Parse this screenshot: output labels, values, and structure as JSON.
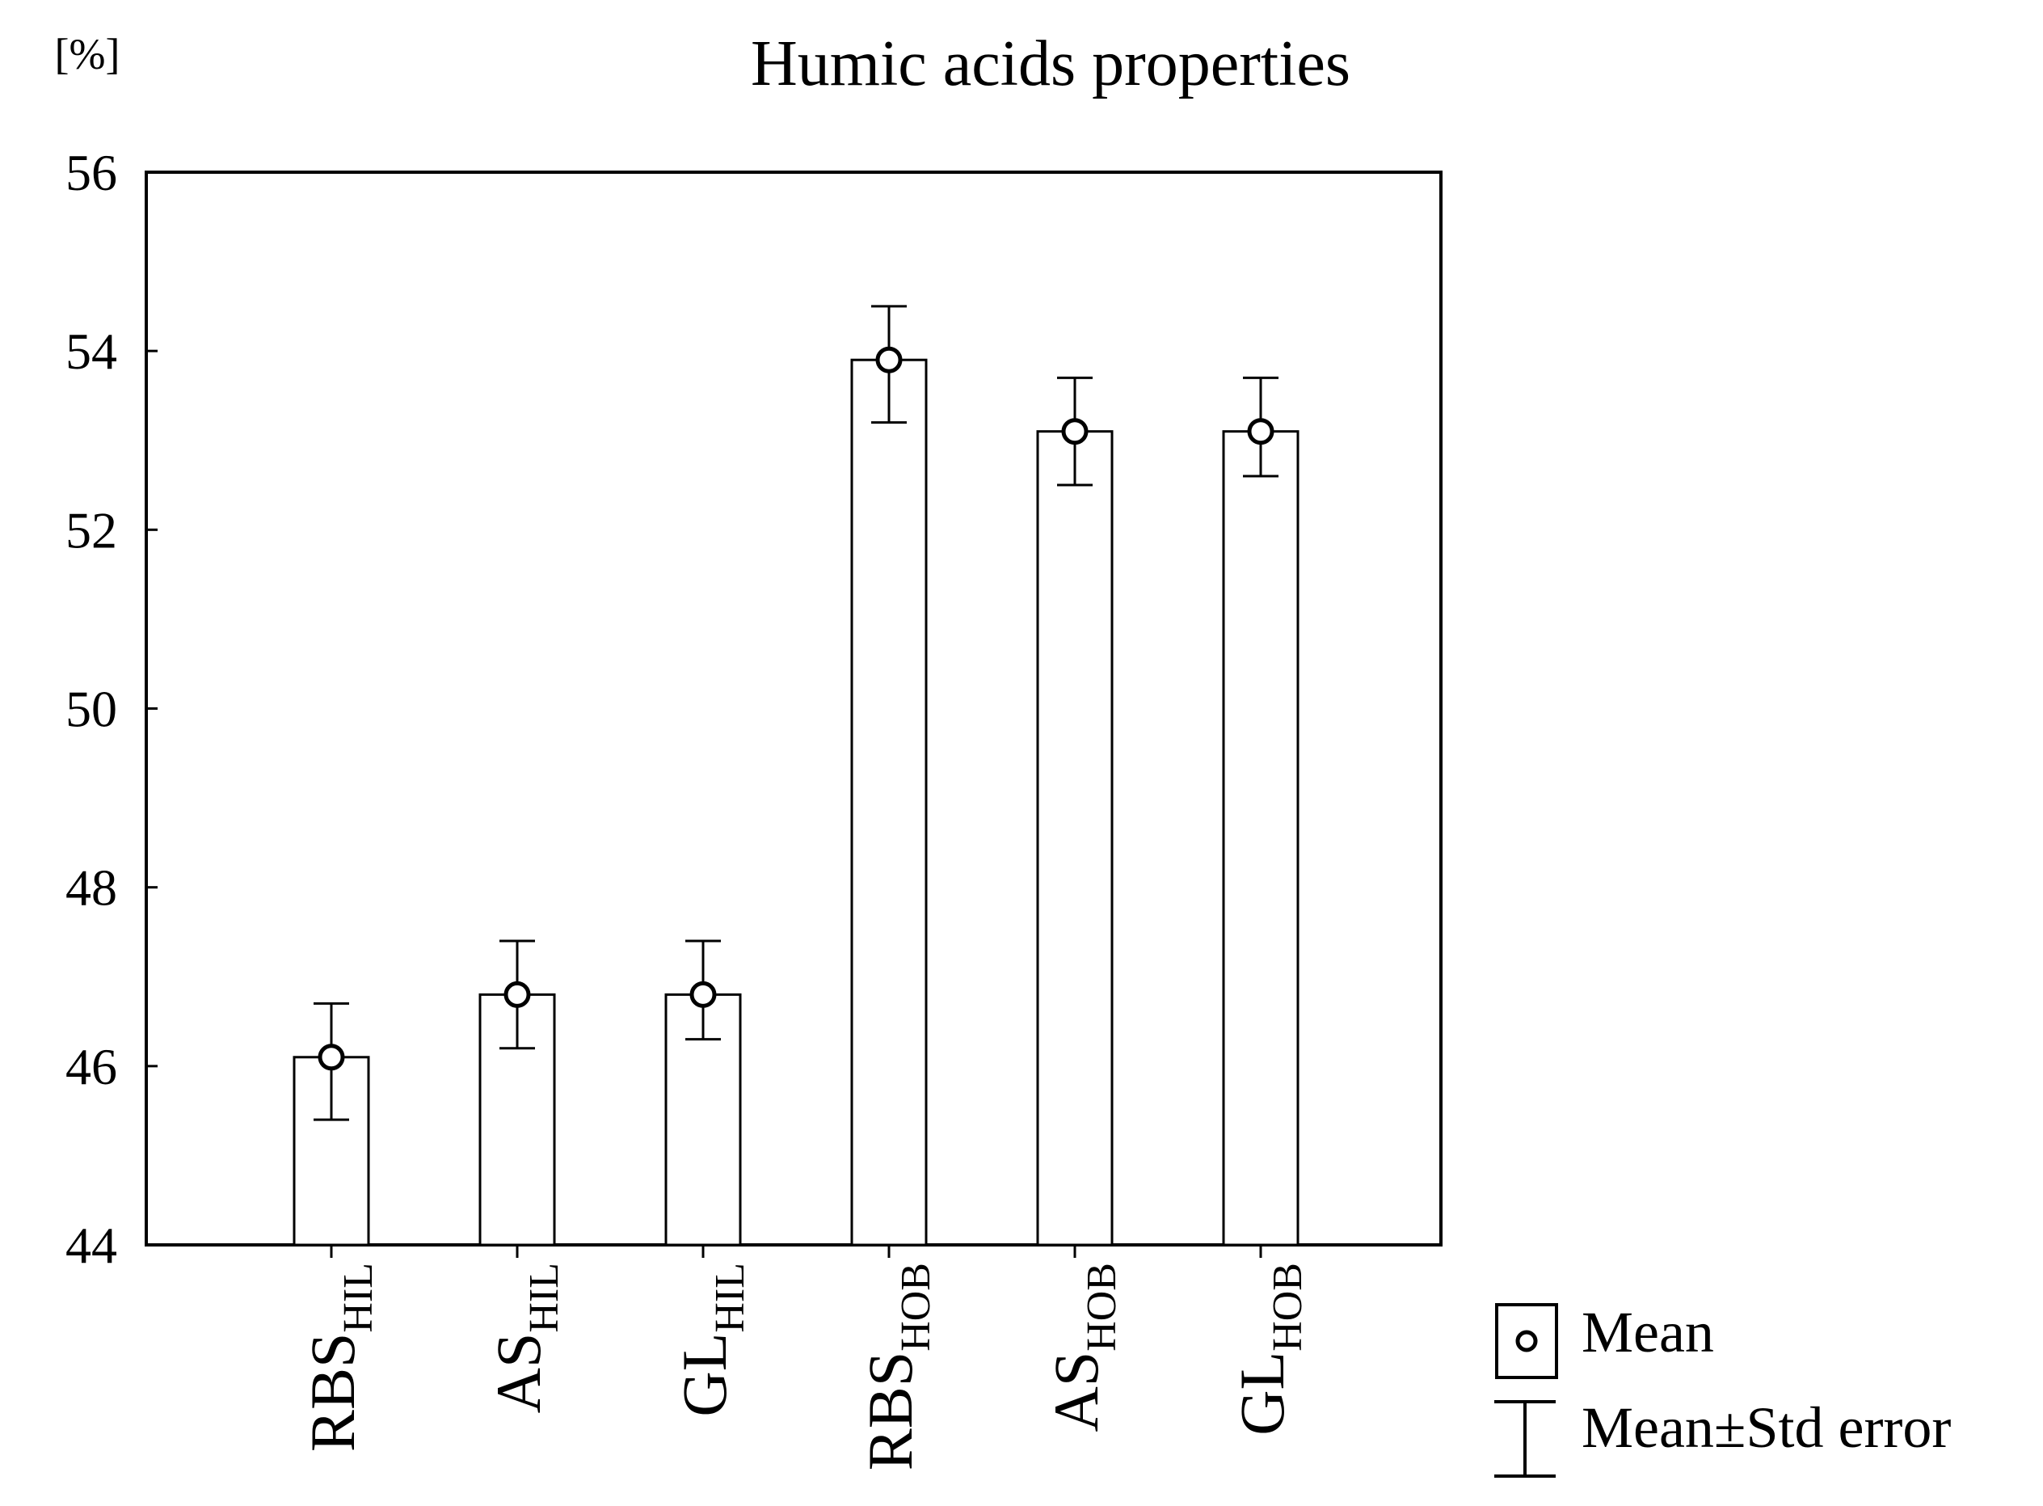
{
  "chart_data": {
    "type": "bar",
    "title": "Humic acids properties",
    "ylabel": "[%]",
    "xlabel": "",
    "ylim": [
      44,
      56
    ],
    "yticks": [
      "44",
      "46",
      "48",
      "50",
      "52",
      "54",
      "56"
    ],
    "grid": false,
    "categories": [
      {
        "base": "RBS",
        "sub": "HIL"
      },
      {
        "base": "AS",
        "sub": "HIL"
      },
      {
        "base": "GL",
        "sub": "HIL"
      },
      {
        "base": "RBS",
        "sub": "HOB"
      },
      {
        "base": "AS",
        "sub": "HOB"
      },
      {
        "base": "GL",
        "sub": "HOB"
      }
    ],
    "values": [
      46.1,
      46.8,
      46.8,
      53.9,
      53.1,
      53.1
    ],
    "error_low": [
      45.4,
      46.2,
      46.3,
      53.2,
      52.5,
      52.6
    ],
    "error_high": [
      46.7,
      47.4,
      47.4,
      54.5,
      53.7,
      53.7
    ],
    "legend_position": "bottom-right",
    "legend": {
      "mean": "Mean",
      "error": "Mean±Std error"
    },
    "colors": {
      "bar_fill": "#ffffff",
      "stroke": "#000000"
    }
  }
}
